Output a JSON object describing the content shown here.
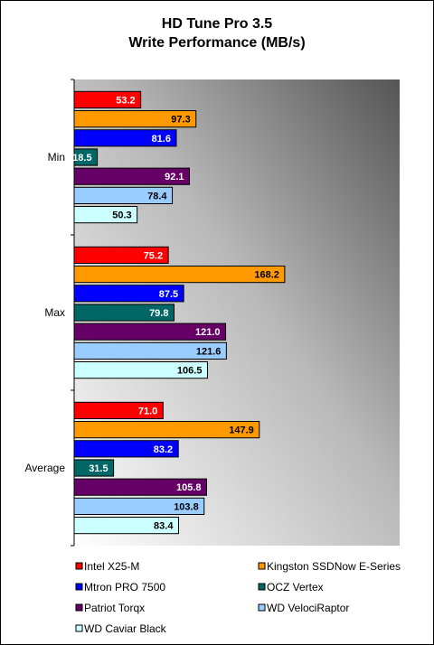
{
  "chart_data": {
    "type": "bar",
    "orientation": "horizontal",
    "title": "HD Tune Pro 3.5",
    "subtitle": "Write Performance (MB/s)",
    "categories": [
      "Min",
      "Max",
      "Average"
    ],
    "xlim": [
      0,
      260
    ],
    "grid": false,
    "legend_position": "bottom",
    "series": [
      {
        "name": "Intel X25-M",
        "color": "#ff0000",
        "label_color": "#ffffff",
        "values": [
          53.2,
          75.2,
          71.0
        ]
      },
      {
        "name": "Kingston SSDNow E-Series",
        "color": "#ff9900",
        "label_color": "#000000",
        "values": [
          97.3,
          168.2,
          147.9
        ]
      },
      {
        "name": "Mtron PRO 7500",
        "color": "#0000ff",
        "label_color": "#ffffff",
        "values": [
          81.6,
          87.5,
          83.2
        ]
      },
      {
        "name": "OCZ Vertex",
        "color": "#006666",
        "label_color": "#ffffff",
        "values": [
          18.5,
          79.8,
          31.5
        ]
      },
      {
        "name": "Patriot Torqx",
        "color": "#660066",
        "label_color": "#ffffff",
        "values": [
          92.1,
          121.0,
          105.8
        ]
      },
      {
        "name": "WD VelociRaptor",
        "color": "#99ccff",
        "label_color": "#000000",
        "values": [
          78.4,
          121.6,
          103.8
        ]
      },
      {
        "name": "WD Caviar Black",
        "color": "#ccffff",
        "label_color": "#000000",
        "values": [
          50.3,
          106.5,
          83.4
        ]
      }
    ]
  }
}
